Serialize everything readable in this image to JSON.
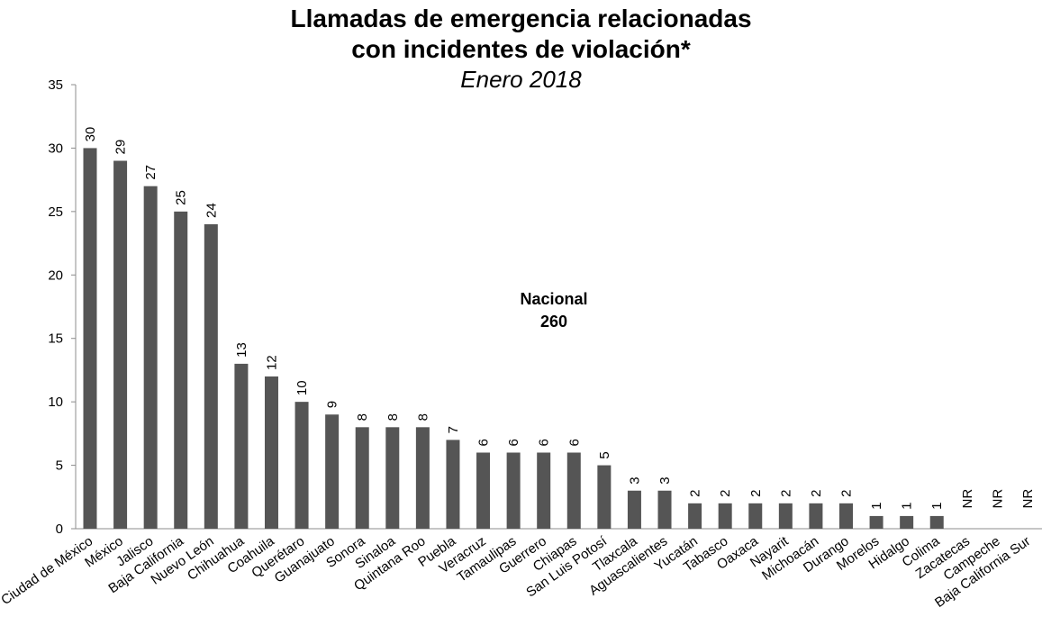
{
  "chart_data": {
    "type": "bar",
    "title_line1": "Llamadas de emergencia relacionadas",
    "title_line2": "con incidentes de violación*",
    "subtitle": "Enero 2018",
    "xlabel": "",
    "ylabel": "",
    "ylim": [
      0,
      35
    ],
    "yticks": [
      "0",
      "5",
      "10",
      "15",
      "20",
      "25",
      "30",
      "35"
    ],
    "grid": false,
    "bar_color": "#555555",
    "categories": [
      "Ciudad de México",
      "México",
      "Jalisco",
      "Baja California",
      "Nuevo León",
      "Chihuahua",
      "Coahuila",
      "Querétaro",
      "Guanajuato",
      "Sonora",
      "Sinaloa",
      "Quintana Roo",
      "Puebla",
      "Veracruz",
      "Tamaulipas",
      "Guerrero",
      "Chiapas",
      "San Luis Potosí",
      "Tlaxcala",
      "Aguascalientes",
      "Yucatán",
      "Tabasco",
      "Oaxaca",
      "Nayarit",
      "Michoacán",
      "Durango",
      "Morelos",
      "Hidalgo",
      "Colima",
      "Zacatecas",
      "Campeche",
      "Baja California Sur"
    ],
    "values": [
      30,
      29,
      27,
      25,
      24,
      13,
      12,
      10,
      9,
      8,
      8,
      8,
      7,
      6,
      6,
      6,
      6,
      5,
      3,
      3,
      2,
      2,
      2,
      2,
      2,
      2,
      1,
      1,
      1,
      null,
      null,
      null
    ],
    "data_labels": [
      "30",
      "29",
      "27",
      "25",
      "24",
      "13",
      "12",
      "10",
      "9",
      "8",
      "8",
      "8",
      "7",
      "6",
      "6",
      "6",
      "6",
      "5",
      "3",
      "3",
      "2",
      "2",
      "2",
      "2",
      "2",
      "2",
      "1",
      "1",
      "1",
      "NR",
      "NR",
      "NR"
    ],
    "annotation": {
      "line1": "Nacional",
      "line2": "260"
    }
  }
}
